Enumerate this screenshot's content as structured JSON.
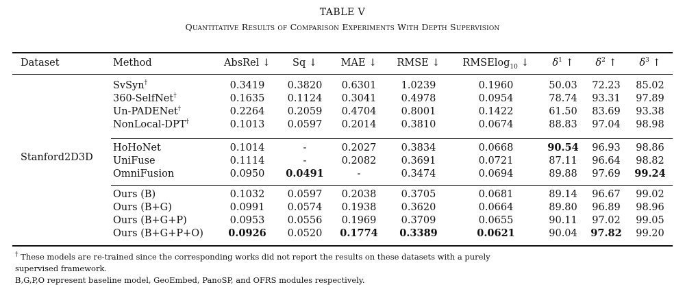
{
  "title": "TABLE V",
  "subtitle": "Quantitative Results of Comparison Experiments With Depth Supervision",
  "headers": {
    "dataset": "Dataset",
    "method": "Method",
    "absrel": "AbsRel ↓",
    "sq": "Sq ↓",
    "mae": "MAE ↓",
    "rmse": "RMSE ↓",
    "rmselog_main": "RMSElog",
    "rmselog_sub": "10",
    "rmselog_arrow": " ↓",
    "d1_base": "δ",
    "d1_sup": "1",
    "d1_arrow": " ↑",
    "d2_base": "δ",
    "d2_sup": "2",
    "d2_arrow": " ↑",
    "d3_base": "δ",
    "d3_sup": "3",
    "d3_arrow": " ↑"
  },
  "dataset_name": "Stanford2D3D",
  "rows": [
    {
      "method": "SvSyn",
      "mark": "†",
      "v": [
        "0.3419",
        "0.3820",
        "0.6301",
        "1.0239",
        "0.1960",
        "50.03",
        "72.23",
        "85.02"
      ]
    },
    {
      "method": "360-SelfNet",
      "mark": "†",
      "v": [
        "0.1635",
        "0.1124",
        "0.3041",
        "0.4978",
        "0.0954",
        "78.74",
        "93.31",
        "97.89"
      ]
    },
    {
      "method": "Un-PADENet",
      "mark": "†",
      "v": [
        "0.2264",
        "0.2059",
        "0.4704",
        "0.8001",
        "0.1422",
        "61.50",
        "83.69",
        "93.38"
      ]
    },
    {
      "method": "NonLocal-DPT",
      "mark": "†",
      "v": [
        "0.1013",
        "0.0597",
        "0.2014",
        "0.3810",
        "0.0674",
        "88.83",
        "97.04",
        "98.98"
      ]
    },
    {
      "method": "HoHoNet",
      "mark": "",
      "v": [
        "0.1014",
        "-",
        "0.2027",
        "0.3834",
        "0.0668",
        "90.54",
        "96.93",
        "98.86"
      ]
    },
    {
      "method": "UniFuse",
      "mark": "",
      "v": [
        "0.1114",
        "-",
        "0.2082",
        "0.3691",
        "0.0721",
        "87.11",
        "96.64",
        "98.82"
      ]
    },
    {
      "method": "OmniFusion",
      "mark": "",
      "v": [
        "0.0950",
        "0.0491",
        "-",
        "0.3474",
        "0.0694",
        "89.88",
        "97.69",
        "99.24"
      ]
    },
    {
      "method": "Ours (B)",
      "mark": "",
      "v": [
        "0.1032",
        "0.0597",
        "0.2038",
        "0.3705",
        "0.0681",
        "89.14",
        "96.67",
        "99.02"
      ]
    },
    {
      "method": "Ours (B+G)",
      "mark": "",
      "v": [
        "0.0991",
        "0.0574",
        "0.1938",
        "0.3620",
        "0.0664",
        "89.80",
        "96.89",
        "98.96"
      ]
    },
    {
      "method": "Ours (B+G+P)",
      "mark": "",
      "v": [
        "0.0953",
        "0.0556",
        "0.1969",
        "0.3709",
        "0.0655",
        "90.11",
        "97.02",
        "99.05"
      ]
    },
    {
      "method": "Ours (B+G+P+O)",
      "mark": "",
      "v": [
        "0.0926",
        "0.0520",
        "0.1774",
        "0.3389",
        "0.0621",
        "90.04",
        "97.82",
        "99.20"
      ]
    }
  ],
  "footnotes": {
    "dagger": "†",
    "line1": " These models are re-trained since the corresponding works did not report the results on these datasets with a purely",
    "line2": "supervised framework.",
    "line3": "B,G,P,O represent baseline model, GeoEmbed, PanoSP, and OFRS modules respectively."
  }
}
